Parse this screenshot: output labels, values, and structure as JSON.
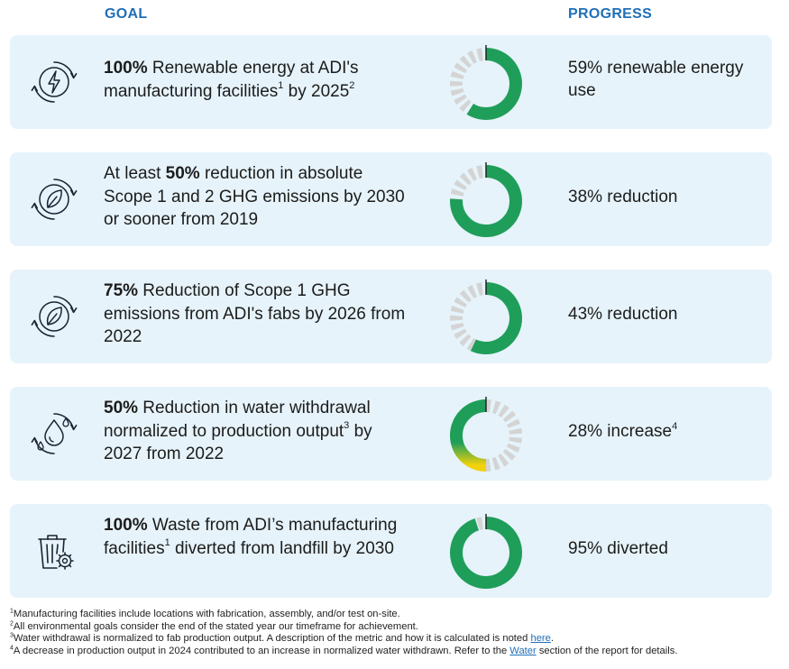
{
  "header": {
    "goal": "GOAL",
    "progress": "PROGRESS"
  },
  "colors": {
    "accent": "#1f6fb7",
    "card_bg": "#e6f3fa",
    "ring_green": "#1f9e5a",
    "ring_grey": "#d4d4d4",
    "ring_yellow": "#f2d20a"
  },
  "goals": [
    {
      "icon": "lightning-bolt-icon",
      "bold": "100%",
      "text_a": " Renewable energy at ADI's manufacturing facilities",
      "sup_a": "1",
      "text_b": " by 2025",
      "sup_b": "2",
      "progress": "59% renewable energy use",
      "progress_sup": "",
      "progress_value": 0.59,
      "trend": "good"
    },
    {
      "icon": "leaf-cycle-icon",
      "bold": "50%",
      "prefix": "At least ",
      "text_a": " reduction in absolute Scope 1 and 2 GHG emissions by 2030 or sooner from 2019",
      "sup_a": "",
      "text_b": "",
      "sup_b": "",
      "progress": "38% reduction",
      "progress_sup": "",
      "progress_value": 0.76,
      "trend": "good"
    },
    {
      "icon": "leaf-cycle-icon",
      "bold": "75%",
      "text_a": " Reduction of Scope 1 GHG emissions from ADI's fabs by 2026 from 2022",
      "sup_a": "",
      "text_b": "",
      "sup_b": "",
      "progress": "43% reduction",
      "progress_sup": "",
      "progress_value": 0.57,
      "trend": "good"
    },
    {
      "icon": "water-drops-cycle-icon",
      "bold": "50%",
      "text_a": " Reduction in water withdrawal normalized to production output",
      "sup_a": "3",
      "text_b": " by 2027 from 2022",
      "sup_b": "",
      "progress": "28% increase",
      "progress_sup": "4",
      "progress_value": 0.5,
      "trend": "bad"
    },
    {
      "icon": "recycling-bin-gear-icon",
      "bold": "100%",
      "text_a": " Waste from ADI’s manufacturing facilities",
      "sup_a": "1",
      "text_b": " diverted from landfill by 2030",
      "sup_b": "",
      "progress": "95% diverted",
      "progress_sup": "",
      "progress_value": 0.95,
      "trend": "good"
    }
  ],
  "footnotes": {
    "f1": {
      "num": "1",
      "text": "Manufacturing facilities include locations with fabrication, assembly, and/or test on-site."
    },
    "f2": {
      "num": "2",
      "text": "All environmental goals consider the end of the stated year our timeframe for achievement."
    },
    "f3": {
      "num": "3",
      "text": "Water withdrawal is normalized to fab production output. A description of the metric and how it is calculated is noted ",
      "link": "here",
      "after": "."
    },
    "f4": {
      "num": "4",
      "text": "A decrease in production output in 2024 contributed to an increase in normalized water withdrawn. Refer to the ",
      "link": "Water",
      "after": " section of the report for details."
    }
  }
}
